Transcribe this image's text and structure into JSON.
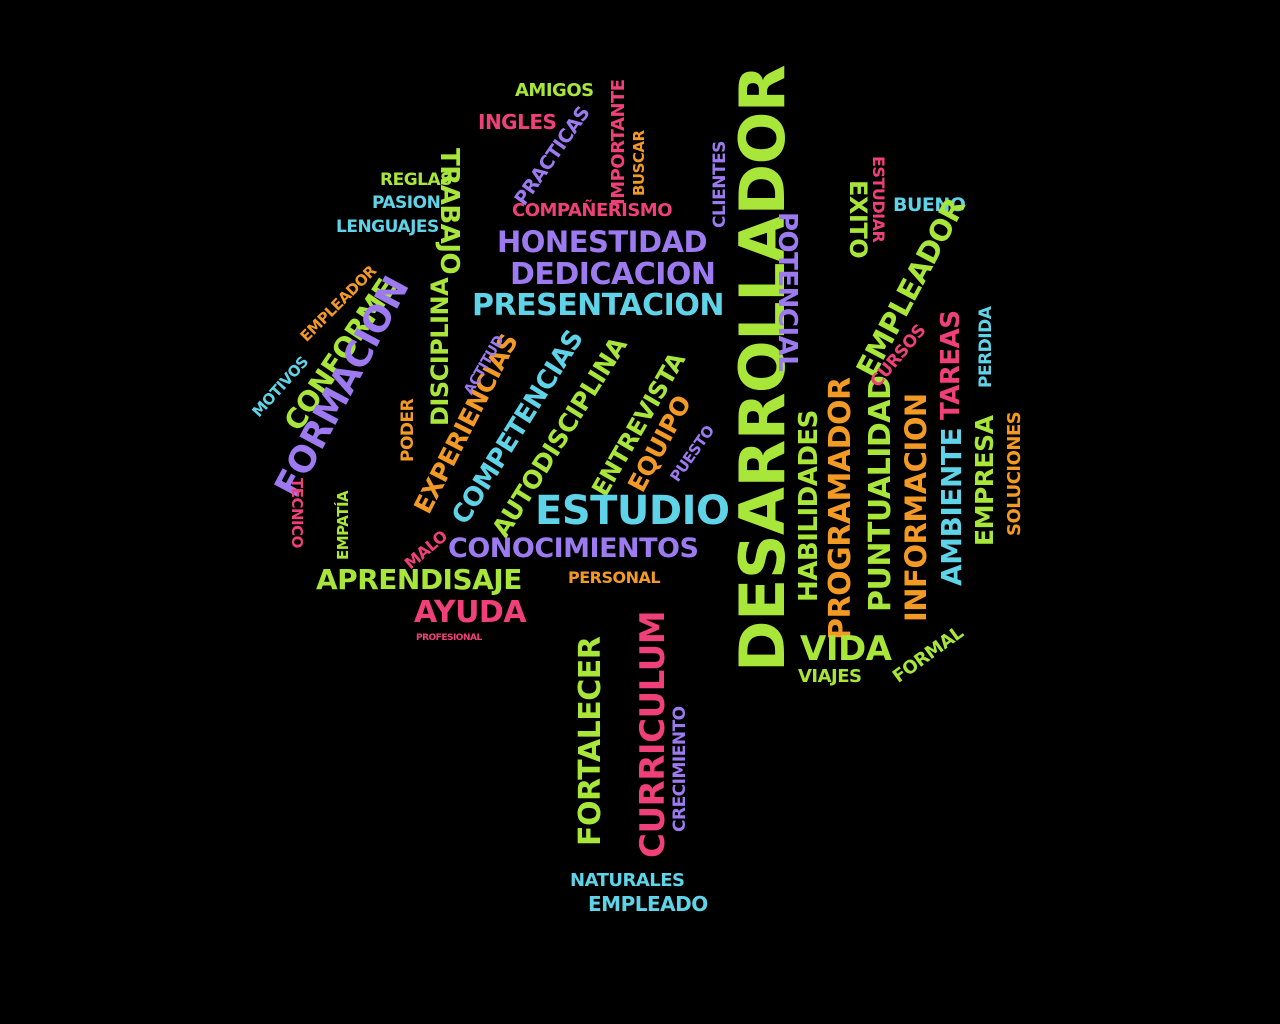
{
  "background": "#000000",
  "palette": {
    "green": "#a8e63a",
    "cyan": "#5fd3e8",
    "purple": "#9d7af0",
    "pink": "#f0407a",
    "orange": "#f29a24"
  },
  "words": [
    {
      "text": "AMIGOS",
      "color": "green"
    },
    {
      "text": "INGLES",
      "color": "pink"
    },
    {
      "text": "PRACTICAS",
      "color": "purple"
    },
    {
      "text": "IMPORTANTE",
      "color": "pink"
    },
    {
      "text": "COMPAÑERISMO",
      "color": "pink"
    },
    {
      "text": "REGLAS",
      "color": "green"
    },
    {
      "text": "PASION",
      "color": "cyan"
    },
    {
      "text": "LENGUAJES",
      "color": "cyan"
    },
    {
      "text": "HONESTIDAD",
      "color": "purple"
    },
    {
      "text": "DEDICACION",
      "color": "purple"
    },
    {
      "text": "PRESENTACION",
      "color": "cyan"
    },
    {
      "text": "CLIENTES",
      "color": "purple"
    },
    {
      "text": "DESARROLLADOR",
      "color": "green"
    },
    {
      "text": "POTENCIAL",
      "color": "purple"
    },
    {
      "text": "EXITO",
      "color": "green"
    },
    {
      "text": "TRABAJO",
      "color": "green"
    },
    {
      "text": "BUENO",
      "color": "cyan"
    },
    {
      "text": "EMPLEADOR",
      "color": "green"
    },
    {
      "text": "TAREAS",
      "color": "pink"
    },
    {
      "text": "CONFORME",
      "color": "green"
    },
    {
      "text": "FORMACION",
      "color": "purple"
    },
    {
      "text": "DISCIPLINA",
      "color": "green"
    },
    {
      "text": "EXPERIENCIAS",
      "color": "orange"
    },
    {
      "text": "COMPETENCIAS",
      "color": "cyan"
    },
    {
      "text": "AUTODISCIPLINA",
      "color": "green"
    },
    {
      "text": "ENTREVISTA",
      "color": "green"
    },
    {
      "text": "EQUIPO",
      "color": "orange"
    },
    {
      "text": "ESTUDIO",
      "color": "cyan"
    },
    {
      "text": "CONOCIMIENTOS",
      "color": "purple"
    },
    {
      "text": "APRENDISAJE",
      "color": "green"
    },
    {
      "text": "PERSONAL",
      "color": "orange"
    },
    {
      "text": "AYUDA",
      "color": "pink"
    },
    {
      "text": "HABILIDADES",
      "color": "green"
    },
    {
      "text": "PROGRAMADOR",
      "color": "orange"
    },
    {
      "text": "PUNTUALIDAD",
      "color": "green"
    },
    {
      "text": "INFORMACION",
      "color": "orange"
    },
    {
      "text": "AMBIENTE",
      "color": "cyan"
    },
    {
      "text": "EMPRESA",
      "color": "green"
    },
    {
      "text": "VIDA",
      "color": "green"
    },
    {
      "text": "VIAJES",
      "color": "green"
    },
    {
      "text": "FORMAL",
      "color": "green"
    },
    {
      "text": "CURSOS",
      "color": "pink"
    },
    {
      "text": "FORTALECER",
      "color": "green"
    },
    {
      "text": "CURRICULUM",
      "color": "pink"
    },
    {
      "text": "CRECIMIENTO",
      "color": "purple"
    },
    {
      "text": "NATURALES",
      "color": "cyan"
    },
    {
      "text": "EMPLEADO",
      "color": "cyan"
    },
    {
      "text": "MOTIVOS",
      "color": "cyan"
    },
    {
      "text": "ACTITUD",
      "color": "purple"
    },
    {
      "text": "PUESTO",
      "color": "purple"
    },
    {
      "text": "TECNICO",
      "color": "pink"
    },
    {
      "text": "MALO",
      "color": "pink"
    },
    {
      "text": "PODER",
      "color": "orange"
    },
    {
      "text": "SOLUCIONES",
      "color": "orange"
    },
    {
      "text": "PERDIDA",
      "color": "cyan"
    },
    {
      "text": "ESTUDIAR",
      "color": "pink"
    },
    {
      "text": "EMPLEADOR",
      "color": "orange"
    },
    {
      "text": "BUSCAR",
      "color": "orange"
    },
    {
      "text": "EMPATÍA",
      "color": "green"
    },
    {
      "text": "PROFESIONAL",
      "color": "pink"
    }
  ]
}
